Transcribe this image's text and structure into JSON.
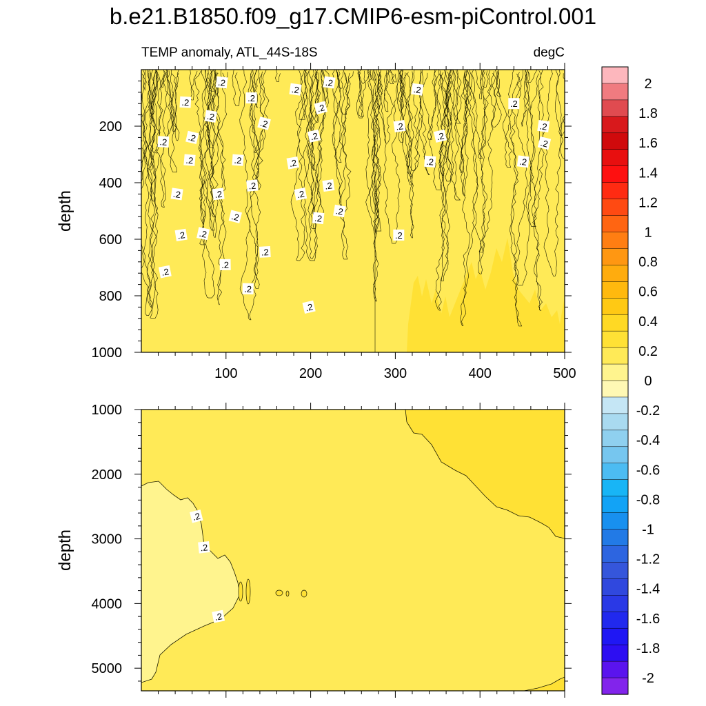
{
  "title": "b.e21.B1850.f09_g17.CMIP6-esm-piControl.001",
  "colors": {
    "bg_fill": "#ffea57",
    "light_fill": "#fff48e",
    "deeper_fill": "#ffe135",
    "contour": "#1a1a00",
    "label_bg": "#ffffff"
  },
  "chart_data": [
    {
      "type": "contour",
      "panel": "top",
      "left_title": "TEMP anomaly, ATL_44S-18S",
      "right_title": "degC",
      "xlabel": "",
      "ylabel": "depth",
      "xlim": [
        0,
        500
      ],
      "ylim": [
        1000,
        0
      ],
      "x_ticks": [
        "100",
        "200",
        "300",
        "400",
        "500"
      ],
      "y_ticks": [
        "200",
        "400",
        "600",
        "800",
        "1000"
      ],
      "contour_labels": [
        {
          "t": ".2",
          "x": 95,
          "y": 45
        },
        {
          "t": ".2",
          "x": 182,
          "y": 70
        },
        {
          "t": ".2",
          "x": 222,
          "y": 45
        },
        {
          "t": ".2",
          "x": 130,
          "y": 100
        },
        {
          "t": ".2",
          "x": 52,
          "y": 115
        },
        {
          "t": ".2",
          "x": 212,
          "y": 135
        },
        {
          "t": ".2",
          "x": 326,
          "y": 70
        },
        {
          "t": ".2",
          "x": 440,
          "y": 120
        },
        {
          "t": ".2",
          "x": 82,
          "y": 165
        },
        {
          "t": ".2",
          "x": 145,
          "y": 190
        },
        {
          "t": ".2",
          "x": 305,
          "y": 200
        },
        {
          "t": ".2",
          "x": 475,
          "y": 200
        },
        {
          "t": ".2",
          "x": 26,
          "y": 255
        },
        {
          "t": ".2",
          "x": 60,
          "y": 240
        },
        {
          "t": ".2",
          "x": 204,
          "y": 235
        },
        {
          "t": ".2",
          "x": 353,
          "y": 235
        },
        {
          "t": ".2",
          "x": 476,
          "y": 260
        },
        {
          "t": ".2",
          "x": 114,
          "y": 320
        },
        {
          "t": ".2",
          "x": 57,
          "y": 320
        },
        {
          "t": ".2",
          "x": 179,
          "y": 330
        },
        {
          "t": ".2",
          "x": 341,
          "y": 325
        },
        {
          "t": ".2",
          "x": 451,
          "y": 325
        },
        {
          "t": ".2",
          "x": 131,
          "y": 410
        },
        {
          "t": ".2",
          "x": 221,
          "y": 410
        },
        {
          "t": ".2",
          "x": 42,
          "y": 440
        },
        {
          "t": ".2",
          "x": 91,
          "y": 440
        },
        {
          "t": ".2",
          "x": 188,
          "y": 440
        },
        {
          "t": ".2",
          "x": 111,
          "y": 520
        },
        {
          "t": ".2",
          "x": 209,
          "y": 525
        },
        {
          "t": ".2",
          "x": 234,
          "y": 500
        },
        {
          "t": ".2",
          "x": 47,
          "y": 585
        },
        {
          "t": ".2",
          "x": 73,
          "y": 580
        },
        {
          "t": ".2",
          "x": 304,
          "y": 585
        },
        {
          "t": ".2",
          "x": 146,
          "y": 645
        },
        {
          "t": ".2",
          "x": 99,
          "y": 690
        },
        {
          "t": ".2",
          "x": 28,
          "y": 715
        },
        {
          "t": ".2",
          "x": 126,
          "y": 775
        },
        {
          "t": ".2",
          "x": 198,
          "y": 840
        }
      ]
    },
    {
      "type": "contour",
      "panel": "bottom",
      "xlabel": "",
      "ylabel": "depth",
      "xlim": [
        0,
        500
      ],
      "ylim": [
        5350,
        1000
      ],
      "y_ticks": [
        "1000",
        "2000",
        "3000",
        "4000",
        "5000"
      ],
      "contour_labels": [
        {
          "t": ".2",
          "x": 65,
          "y": 2650
        },
        {
          "t": ".2",
          "x": 74,
          "y": 3130
        },
        {
          "t": ".2",
          "x": 91,
          "y": 4200
        }
      ]
    },
    {
      "type": "colorbar",
      "labels": [
        "2",
        "1.8",
        "1.6",
        "1.4",
        "1.2",
        "1",
        "0.8",
        "0.6",
        "0.4",
        "0.2",
        "0",
        "-0.2",
        "-0.4",
        "-0.6",
        "-0.8",
        "-1",
        "-1.2",
        "-1.4",
        "-1.6",
        "-1.8",
        "-2"
      ],
      "colors": [
        "#fdb7bd",
        "#f07b80",
        "#e04b50",
        "#d8191c",
        "#d00a0c",
        "#e80f0f",
        "#fe1010",
        "#ff2b12",
        "#ff4a12",
        "#ff6512",
        "#ff7e12",
        "#ff9712",
        "#ffac0e",
        "#ffb90e",
        "#ffc914",
        "#ffd924",
        "#ffe135",
        "#ffea57",
        "#fff48e",
        "#fff8b4",
        "#c5e6f5",
        "#a9daf0",
        "#8fd0ef",
        "#76c6ef",
        "#4cbcf2",
        "#18b5f6",
        "#12a3f6",
        "#1890ef",
        "#227ae6",
        "#2d65e0",
        "#3556db",
        "#3048de",
        "#2a39e6",
        "#2129ee",
        "#1f17f4",
        "#2d0ef2",
        "#5a14ee",
        "#8224eb"
      ]
    }
  ]
}
